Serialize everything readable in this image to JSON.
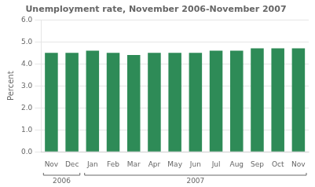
{
  "chart_data": {
    "type": "bar",
    "title": "Unemployment rate, November 2006-November 2007",
    "y_label": "Percent",
    "categories": [
      "Nov",
      "Dec",
      "Jan",
      "Feb",
      "Mar",
      "Apr",
      "May",
      "Jun",
      "Jul",
      "Aug",
      "Sep",
      "Oct",
      "Nov"
    ],
    "values": [
      4.5,
      4.5,
      4.6,
      4.5,
      4.4,
      4.5,
      4.5,
      4.5,
      4.6,
      4.6,
      4.7,
      4.7,
      4.7
    ],
    "color": "#2E8B57",
    "ylim": [
      0.0,
      6.0
    ],
    "yticks": [
      {
        "value": 0.0,
        "label": "0.0"
      },
      {
        "value": 1.0,
        "label": "1.0"
      },
      {
        "value": 2.0,
        "label": "2.0"
      },
      {
        "value": 3.0,
        "label": "3.0"
      },
      {
        "value": 4.0,
        "label": "4.0"
      },
      {
        "value": 5.0,
        "label": "5.0"
      },
      {
        "value": 6.0,
        "label": "6.0"
      }
    ],
    "grid": true,
    "annotations": [
      {
        "text": "2006",
        "start": 0,
        "end": 1
      },
      {
        "text": "2007",
        "start": 2,
        "end": 12
      }
    ]
  }
}
